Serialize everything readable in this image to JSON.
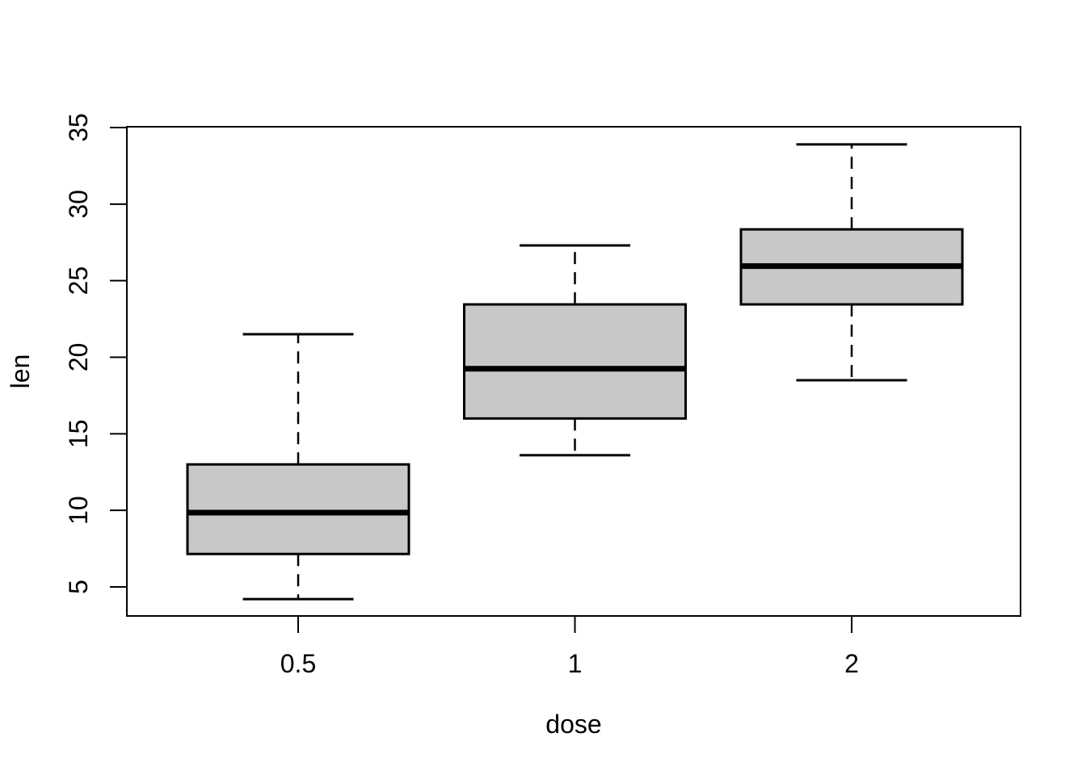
{
  "figure": {
    "background": "#ffffff"
  },
  "chart_data": {
    "type": "boxplot",
    "title": "",
    "xlabel": "dose",
    "ylabel": "len",
    "categories": [
      "0.5",
      "1",
      "2"
    ],
    "y_ticks": [
      "5",
      "10",
      "15",
      "20",
      "25",
      "30",
      "35"
    ],
    "y_tick_values": [
      5,
      10,
      15,
      20,
      25,
      30,
      35
    ],
    "ylim": [
      3.1,
      35.1
    ],
    "grid": false,
    "legend": false,
    "groups": [
      {
        "label": "0.5",
        "min": 4.2,
        "q1": 7.15,
        "median": 9.85,
        "q3": 13.0,
        "max": 21.5,
        "outliers": []
      },
      {
        "label": "1",
        "min": 13.6,
        "q1": 16.0,
        "median": 19.25,
        "q3": 23.45,
        "max": 27.3,
        "outliers": []
      },
      {
        "label": "2",
        "min": 18.5,
        "q1": 23.45,
        "median": 25.95,
        "q3": 28.35,
        "max": 33.9,
        "outliers": []
      }
    ],
    "colors": {
      "box_fill": "#c8c8c8",
      "stroke": "#000000",
      "background": "#ffffff"
    },
    "whisker_line_style": "dashed"
  }
}
